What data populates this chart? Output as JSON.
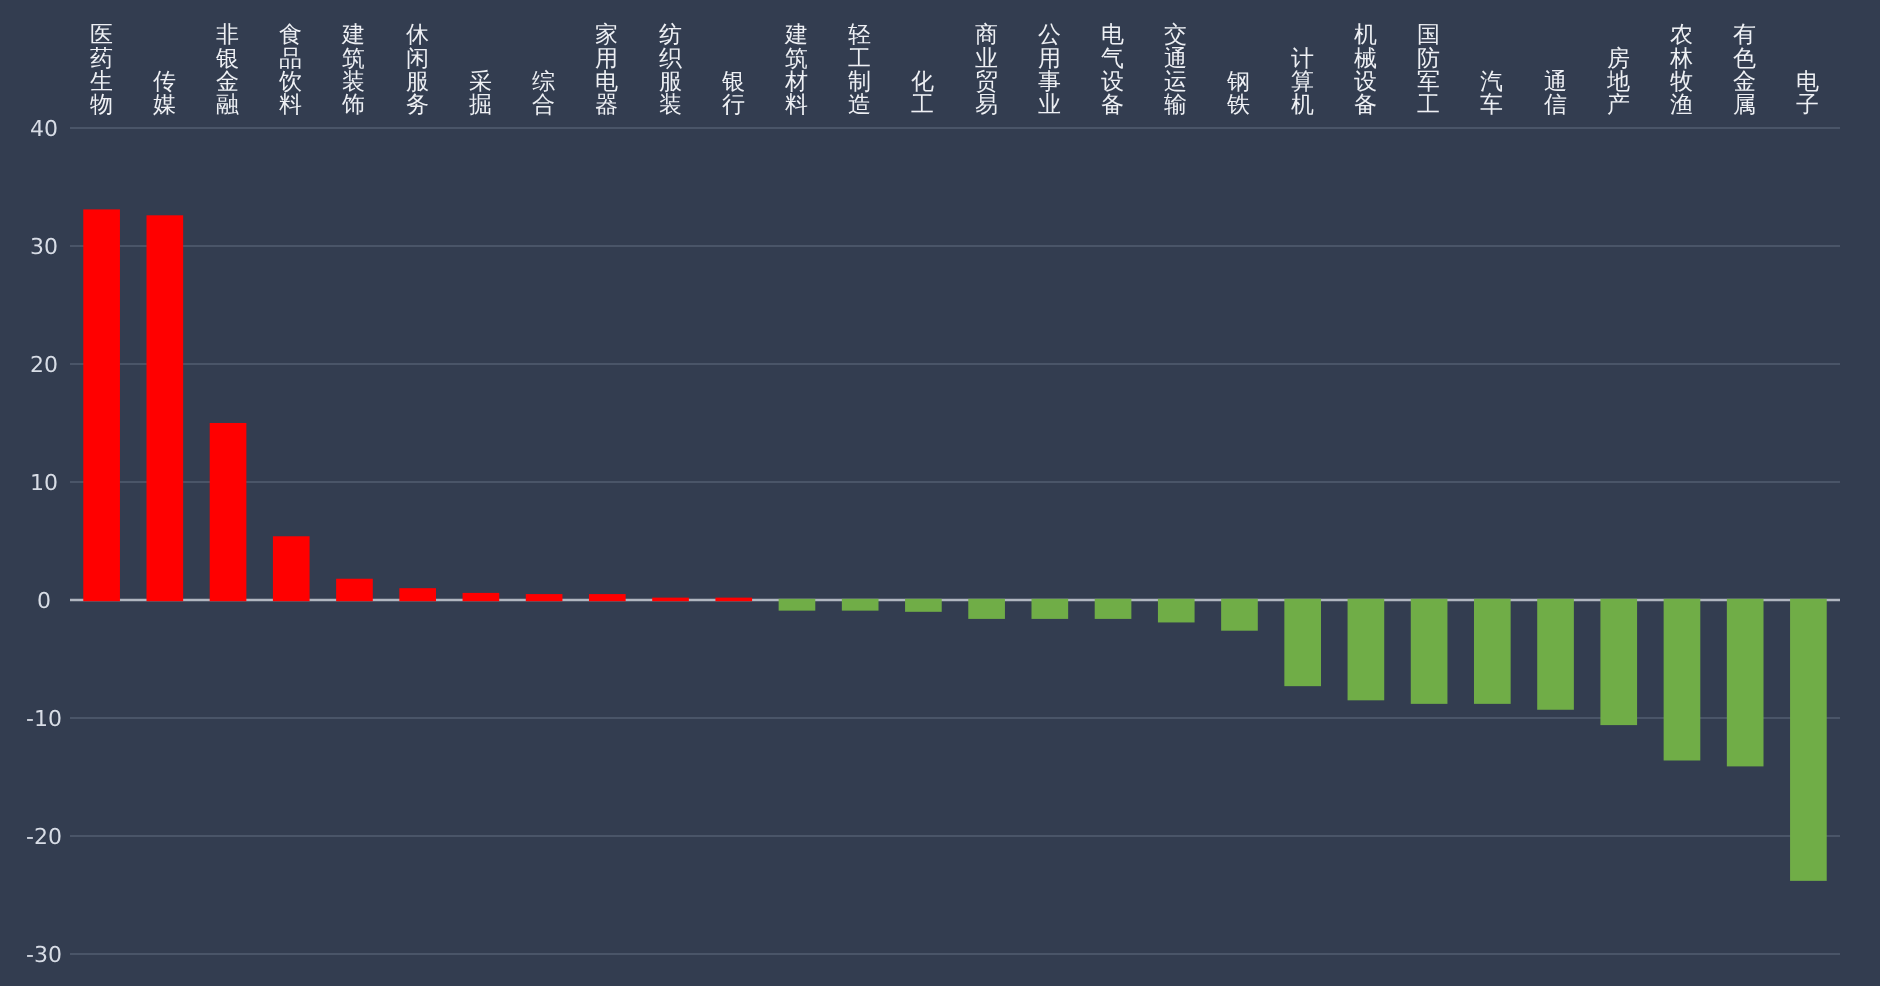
{
  "chart_data": {
    "type": "bar",
    "categories": [
      "医药生物",
      "传媒",
      "非银金融",
      "食品饮料",
      "建筑装饰",
      "休闲服务",
      "采掘",
      "综合",
      "家用电器",
      "纺织服装",
      "银行",
      "建筑材料",
      "轻工制造",
      "化工",
      "商业贸易",
      "公用事业",
      "电气设备",
      "交通运输",
      "钢铁",
      "计算机",
      "机械设备",
      "国防军工",
      "汽车",
      "通信",
      "房地产",
      "农林牧渔",
      "有色金属",
      "电子"
    ],
    "values": [
      33.0,
      32.5,
      14.9,
      5.3,
      1.7,
      0.9,
      0.5,
      0.4,
      0.4,
      0.1,
      0.1,
      -0.8,
      -0.8,
      -0.9,
      -1.5,
      -1.5,
      -1.5,
      -1.8,
      -2.5,
      -7.2,
      -8.4,
      -8.7,
      -8.7,
      -9.2,
      -10.5,
      -13.5,
      -14.0,
      -23.7
    ],
    "colors": [
      "#ff0000",
      "#ff0000",
      "#ff0000",
      "#ff0000",
      "#ff0000",
      "#ff0000",
      "#ff0000",
      "#ff0000",
      "#ff0000",
      "#ff0000",
      "#ff0000",
      "#70ad47",
      "#70ad47",
      "#70ad47",
      "#70ad47",
      "#70ad47",
      "#70ad47",
      "#70ad47",
      "#70ad47",
      "#70ad47",
      "#70ad47",
      "#70ad47",
      "#70ad47",
      "#70ad47",
      "#70ad47",
      "#70ad47",
      "#70ad47",
      "#70ad47"
    ],
    "ylim": [
      -30,
      40
    ],
    "yticks": [
      -30,
      -20,
      -10,
      0,
      10,
      20,
      30,
      40
    ],
    "grid": "y"
  }
}
